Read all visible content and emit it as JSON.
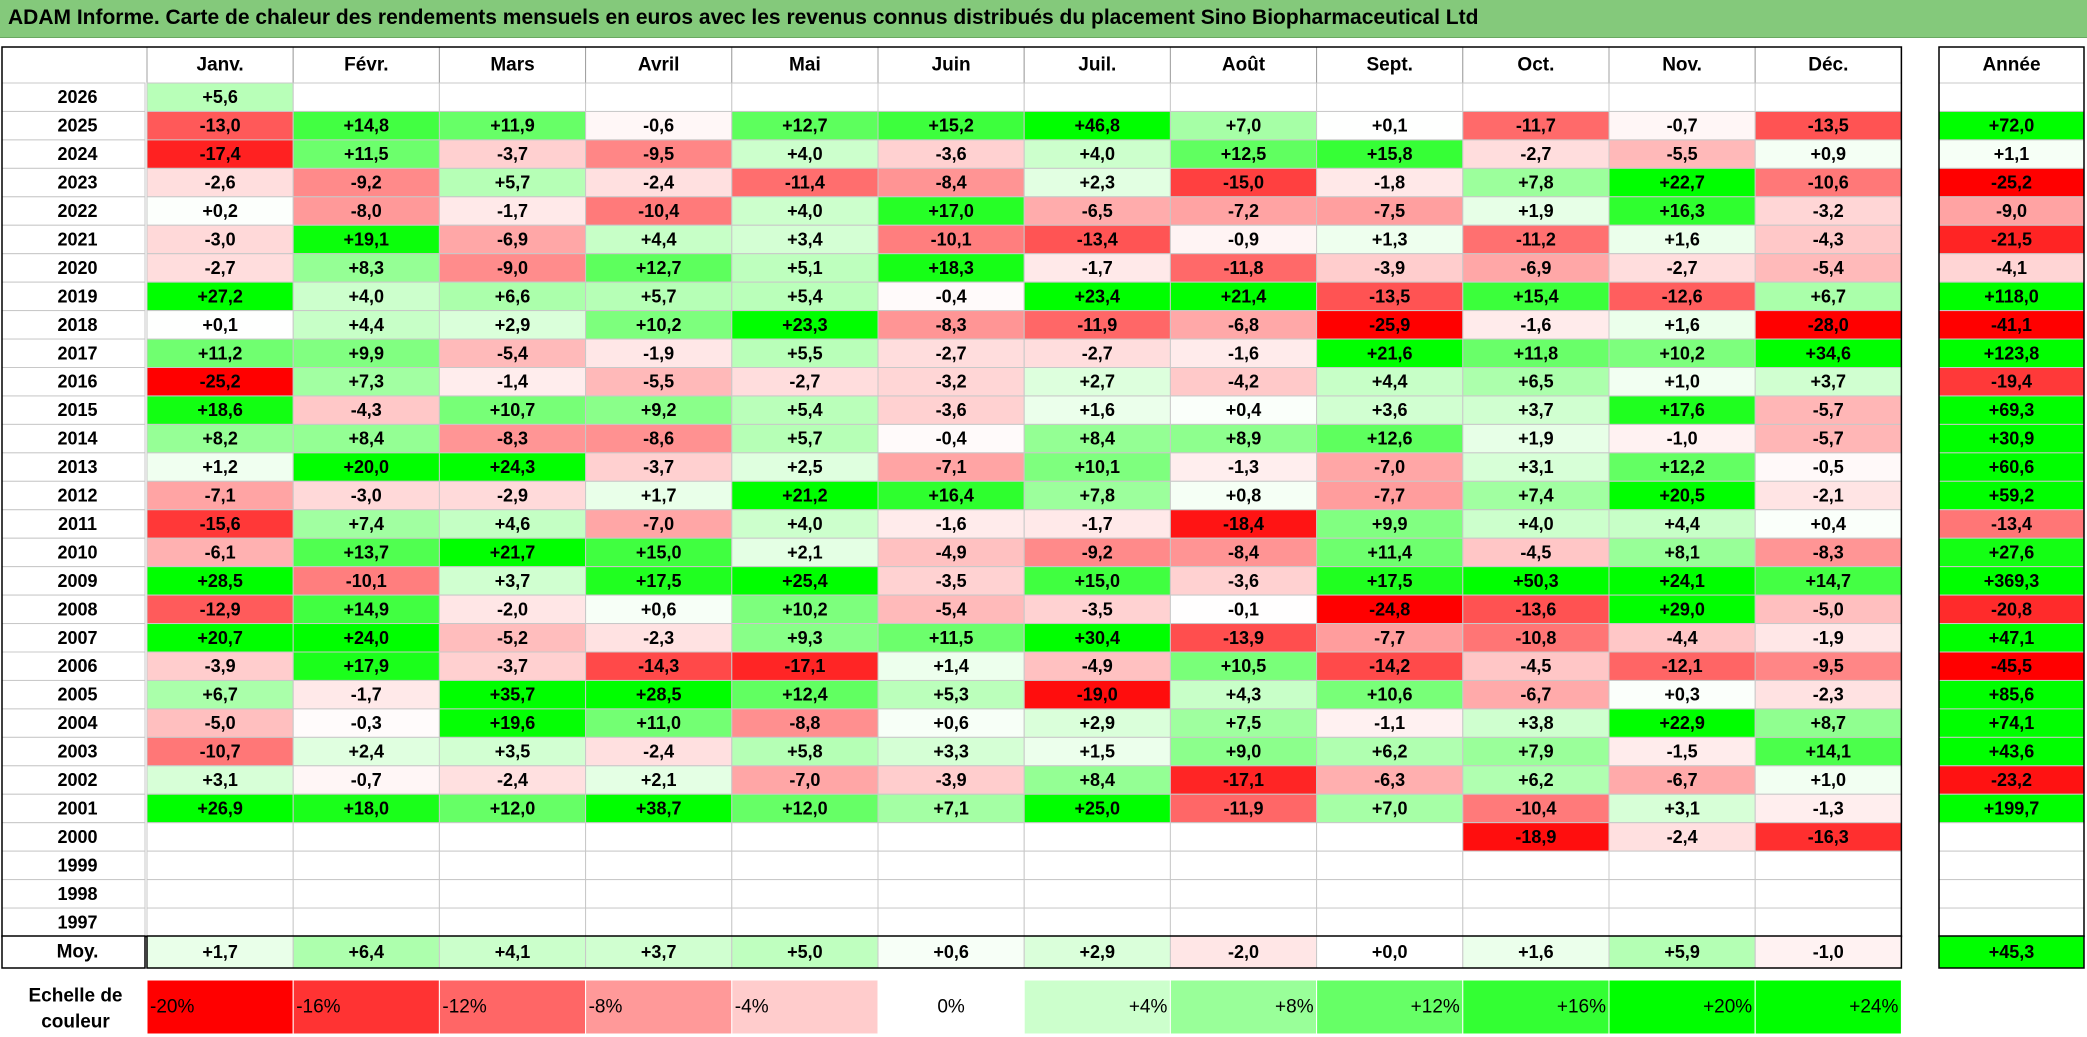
{
  "title": "ADAM Informe. Carte de chaleur des rendements mensuels en euros avec les revenus connus distribués du placement Sino Biopharmaceutical Ltd",
  "chart_data": {
    "type": "heatmap",
    "title": "ADAM Informe. Carte de chaleur des rendements mensuels en euros avec les revenus connus distribués du placement Sino Biopharmaceutical Ltd",
    "months": [
      "Janv.",
      "Févr.",
      "Mars",
      "Avril",
      "Mai",
      "Juin",
      "Juil.",
      "Août",
      "Sept.",
      "Oct.",
      "Nov.",
      "Déc."
    ],
    "year_label": "Année",
    "years": [
      "2026",
      "2025",
      "2024",
      "2023",
      "2022",
      "2021",
      "2020",
      "2019",
      "2018",
      "2017",
      "2016",
      "2015",
      "2014",
      "2013",
      "2012",
      "2011",
      "2010",
      "2009",
      "2008",
      "2007",
      "2006",
      "2005",
      "2004",
      "2003",
      "2002",
      "2001",
      "2000",
      "1999",
      "1998",
      "1997"
    ],
    "values": [
      [
        "+5,6",
        "",
        "",
        "",
        "",
        "",
        "",
        "",
        "",
        "",
        "",
        ""
      ],
      [
        "-13,0",
        "+14,8",
        "+11,9",
        "-0,6",
        "+12,7",
        "+15,2",
        "+46,8",
        "+7,0",
        "+0,1",
        "-11,7",
        "-0,7",
        "-13,5"
      ],
      [
        "-17,4",
        "+11,5",
        "-3,7",
        "-9,5",
        "+4,0",
        "-3,6",
        "+4,0",
        "+12,5",
        "+15,8",
        "-2,7",
        "-5,5",
        "+0,9"
      ],
      [
        "-2,6",
        "-9,2",
        "+5,7",
        "-2,4",
        "-11,4",
        "-8,4",
        "+2,3",
        "-15,0",
        "-1,8",
        "+7,8",
        "+22,7",
        "-10,6"
      ],
      [
        "+0,2",
        "-8,0",
        "-1,7",
        "-10,4",
        "+4,0",
        "+17,0",
        "-6,5",
        "-7,2",
        "-7,5",
        "+1,9",
        "+16,3",
        "-3,2"
      ],
      [
        "-3,0",
        "+19,1",
        "-6,9",
        "+4,4",
        "+3,4",
        "-10,1",
        "-13,4",
        "-0,9",
        "+1,3",
        "-11,2",
        "+1,6",
        "-4,3"
      ],
      [
        "-2,7",
        "+8,3",
        "-9,0",
        "+12,7",
        "+5,1",
        "+18,3",
        "-1,7",
        "-11,8",
        "-3,9",
        "-6,9",
        "-2,7",
        "-5,4"
      ],
      [
        "+27,2",
        "+4,0",
        "+6,6",
        "+5,7",
        "+5,4",
        "-0,4",
        "+23,4",
        "+21,4",
        "-13,5",
        "+15,4",
        "-12,6",
        "+6,7"
      ],
      [
        "+0,1",
        "+4,4",
        "+2,9",
        "+10,2",
        "+23,3",
        "-8,3",
        "-11,9",
        "-6,8",
        "-25,9",
        "-1,6",
        "+1,6",
        "-28,0"
      ],
      [
        "+11,2",
        "+9,9",
        "-5,4",
        "-1,9",
        "+5,5",
        "-2,7",
        "-2,7",
        "-1,6",
        "+21,6",
        "+11,8",
        "+10,2",
        "+34,6"
      ],
      [
        "-25,2",
        "+7,3",
        "-1,4",
        "-5,5",
        "-2,7",
        "-3,2",
        "+2,7",
        "-4,2",
        "+4,4",
        "+6,5",
        "+1,0",
        "+3,7"
      ],
      [
        "+18,6",
        "-4,3",
        "+10,7",
        "+9,2",
        "+5,4",
        "-3,6",
        "+1,6",
        "+0,4",
        "+3,6",
        "+3,7",
        "+17,6",
        "-5,7"
      ],
      [
        "+8,2",
        "+8,4",
        "-8,3",
        "-8,6",
        "+5,7",
        "-0,4",
        "+8,4",
        "+8,9",
        "+12,6",
        "+1,9",
        "-1,0",
        "-5,7"
      ],
      [
        "+1,2",
        "+20,0",
        "+24,3",
        "-3,7",
        "+2,5",
        "-7,1",
        "+10,1",
        "-1,3",
        "-7,0",
        "+3,1",
        "+12,2",
        "-0,5"
      ],
      [
        "-7,1",
        "-3,0",
        "-2,9",
        "+1,7",
        "+21,2",
        "+16,4",
        "+7,8",
        "+0,8",
        "-7,7",
        "+7,4",
        "+20,5",
        "-2,1"
      ],
      [
        "-15,6",
        "+7,4",
        "+4,6",
        "-7,0",
        "+4,0",
        "-1,6",
        "-1,7",
        "-18,4",
        "+9,9",
        "+4,0",
        "+4,4",
        "+0,4"
      ],
      [
        "-6,1",
        "+13,7",
        "+21,7",
        "+15,0",
        "+2,1",
        "-4,9",
        "-9,2",
        "-8,4",
        "+11,4",
        "-4,5",
        "+8,1",
        "-8,3"
      ],
      [
        "+28,5",
        "-10,1",
        "+3,7",
        "+17,5",
        "+25,4",
        "-3,5",
        "+15,0",
        "-3,6",
        "+17,5",
        "+50,3",
        "+24,1",
        "+14,7"
      ],
      [
        "-12,9",
        "+14,9",
        "-2,0",
        "+0,6",
        "+10,2",
        "-5,4",
        "-3,5",
        "-0,1",
        "-24,8",
        "-13,6",
        "+29,0",
        "-5,0"
      ],
      [
        "+20,7",
        "+24,0",
        "-5,2",
        "-2,3",
        "+9,3",
        "+11,5",
        "+30,4",
        "-13,9",
        "-7,7",
        "-10,8",
        "-4,4",
        "-1,9"
      ],
      [
        "-3,9",
        "+17,9",
        "-3,7",
        "-14,3",
        "-17,1",
        "+1,4",
        "-4,9",
        "+10,5",
        "-14,2",
        "-4,5",
        "-12,1",
        "-9,5"
      ],
      [
        "+6,7",
        "-1,7",
        "+35,7",
        "+28,5",
        "+12,4",
        "+5,3",
        "-19,0",
        "+4,3",
        "+10,6",
        "-6,7",
        "+0,3",
        "-2,3"
      ],
      [
        "-5,0",
        "-0,3",
        "+19,6",
        "+11,0",
        "-8,8",
        "+0,6",
        "+2,9",
        "+7,5",
        "-1,1",
        "+3,8",
        "+22,9",
        "+8,7"
      ],
      [
        "-10,7",
        "+2,4",
        "+3,5",
        "-2,4",
        "+5,8",
        "+3,3",
        "+1,5",
        "+9,0",
        "+6,2",
        "+7,9",
        "-1,5",
        "+14,1"
      ],
      [
        "+3,1",
        "-0,7",
        "-2,4",
        "+2,1",
        "-7,0",
        "-3,9",
        "+8,4",
        "-17,1",
        "-6,3",
        "+6,2",
        "-6,7",
        "+1,0"
      ],
      [
        "+26,9",
        "+18,0",
        "+12,0",
        "+38,7",
        "+12,0",
        "+7,1",
        "+25,0",
        "-11,9",
        "+7,0",
        "-10,4",
        "+3,1",
        "-1,3"
      ],
      [
        "",
        "",
        "",
        "",
        "",
        "",
        "",
        "",
        "",
        "-18,9",
        "-2,4",
        "-16,3"
      ],
      [
        "",
        "",
        "",
        "",
        "",
        "",
        "",
        "",
        "",
        "",
        "",
        ""
      ],
      [
        "",
        "",
        "",
        "",
        "",
        "",
        "",
        "",
        "",
        "",
        "",
        ""
      ],
      [
        "",
        "",
        "",
        "",
        "",
        "",
        "",
        "",
        "",
        "",
        "",
        ""
      ]
    ],
    "annual": [
      "",
      "+72,0",
      "+1,1",
      "-25,2",
      "-9,0",
      "-21,5",
      "-4,1",
      "+118,0",
      "-41,1",
      "+123,8",
      "-19,4",
      "+69,3",
      "+30,9",
      "+60,6",
      "+59,2",
      "-13,4",
      "+27,6",
      "+369,3",
      "-20,8",
      "+47,1",
      "-45,5",
      "+85,6",
      "+74,1",
      "+43,6",
      "-23,2",
      "+199,7",
      "",
      "",
      "",
      ""
    ],
    "average_label": "Moy.",
    "averages": [
      "+1,7",
      "+6,4",
      "+4,1",
      "+3,7",
      "+5,0",
      "+0,6",
      "+2,9",
      "-2,0",
      "+0,0",
      "+1,6",
      "+5,9",
      "-1,0"
    ],
    "average_annual": "+45,3",
    "scale_label": [
      "Echelle de",
      "couleur"
    ],
    "scale": [
      "-20%",
      "-16%",
      "-12%",
      "-8%",
      "-4%",
      "0%",
      "+4%",
      "+8%",
      "+12%",
      "+16%",
      "+20%",
      "+24%"
    ],
    "scale_values": [
      -20,
      -16,
      -12,
      -8,
      -4,
      0,
      4,
      8,
      12,
      16,
      20,
      24
    ],
    "colors": {
      "negative": "#ff0000",
      "positive": "#00ff00",
      "neutral": "#ffffff",
      "title_bar": "#84c97b"
    }
  }
}
